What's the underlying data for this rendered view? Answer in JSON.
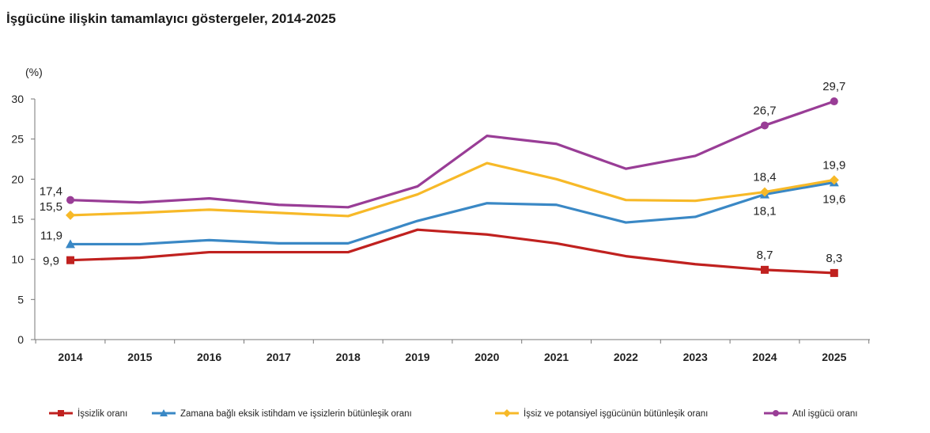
{
  "chart_data": {
    "type": "line",
    "title": "İşgücüne ilişkin tamamlayıcı göstergeler, 2014-2025",
    "ylabel": "(%)",
    "xlabel": "",
    "ylim": [
      0,
      30
    ],
    "yticks": [
      0,
      5,
      10,
      15,
      20,
      25,
      30
    ],
    "grid": false,
    "legend_position": "bottom",
    "categories": [
      "2014",
      "2015",
      "2016",
      "2017",
      "2018",
      "2019",
      "2020",
      "2021",
      "2022",
      "2023",
      "2024",
      "2025"
    ],
    "series": [
      {
        "name": "İşsizlik oranı",
        "color": "#c0211f",
        "marker": "square",
        "values": [
          9.9,
          10.2,
          10.9,
          10.9,
          10.9,
          13.7,
          13.1,
          12.0,
          10.4,
          9.4,
          8.7,
          8.3
        ],
        "labels": [
          {
            "index": 0,
            "text": "9,9",
            "pos": "left"
          },
          {
            "index": 10,
            "text": "8,7",
            "pos": "above"
          },
          {
            "index": 11,
            "text": "8,3",
            "pos": "above"
          }
        ]
      },
      {
        "name": "Zamana bağlı eksik istihdam ve işsizlerin bütünleşik oranı",
        "color": "#3a88c5",
        "marker": "triangle",
        "values": [
          11.9,
          11.9,
          12.4,
          12.0,
          12.0,
          14.8,
          17.0,
          16.8,
          14.6,
          15.3,
          18.1,
          19.6
        ],
        "labels": [
          {
            "index": 0,
            "text": "11,9",
            "pos": "left-above"
          },
          {
            "index": 10,
            "text": "18,1",
            "pos": "below"
          },
          {
            "index": 11,
            "text": "19,6",
            "pos": "below"
          }
        ]
      },
      {
        "name": "İşsiz ve potansiyel işgücünün bütünleşik oranı",
        "color": "#f7b928",
        "marker": "diamond",
        "values": [
          15.5,
          15.8,
          16.2,
          15.8,
          15.4,
          18.1,
          22.0,
          20.0,
          17.4,
          17.3,
          18.4,
          19.9
        ],
        "labels": [
          {
            "index": 0,
            "text": "15,5",
            "pos": "left-above"
          },
          {
            "index": 10,
            "text": "18,4",
            "pos": "above"
          },
          {
            "index": 11,
            "text": "19,9",
            "pos": "above"
          }
        ]
      },
      {
        "name": "Atıl işgücü oranı",
        "color": "#993d96",
        "marker": "circle",
        "values": [
          17.4,
          17.1,
          17.6,
          16.8,
          16.5,
          19.1,
          25.4,
          24.4,
          21.3,
          22.9,
          26.7,
          29.7
        ],
        "labels": [
          {
            "index": 0,
            "text": "17,4",
            "pos": "left-above"
          },
          {
            "index": 10,
            "text": "26,7",
            "pos": "above"
          },
          {
            "index": 11,
            "text": "29,7",
            "pos": "above"
          }
        ]
      }
    ]
  }
}
